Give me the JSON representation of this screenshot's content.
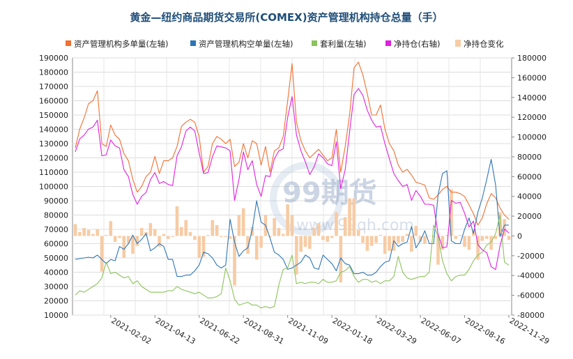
{
  "chart_data": {
    "type": "line+bar",
    "title": "黄金—纽约商品期货交易所(COMEX)资产管理机构持仓总量（手）",
    "watermark": {
      "main": "99期货",
      "sub": "www.99qh.com"
    },
    "x_tick_labels": [
      "2021-02-02",
      "2021-04-13",
      "2021-06-22",
      "2021-08-31",
      "2021-11-09",
      "2022-01-18",
      "2022-03-29",
      "2022-06-07",
      "2022-08-16",
      "2022-11-29"
    ],
    "x_tick_positions": [
      8,
      18,
      28,
      38,
      48,
      58,
      68,
      78,
      88,
      98
    ],
    "n_points": 99,
    "left_axis": {
      "min": 10000,
      "max": 190000,
      "step": 10000,
      "ticks": [
        "10000",
        "20000",
        "30000",
        "40000",
        "50000",
        "60000",
        "70000",
        "80000",
        "90000",
        "100000",
        "110000",
        "120000",
        "130000",
        "140000",
        "150000",
        "160000",
        "170000",
        "180000",
        "190000"
      ]
    },
    "right_axis": {
      "min": -80000,
      "max": 180000,
      "step": 20000,
      "ticks": [
        "-80000",
        "-60000",
        "-40000",
        "-20000",
        "0",
        "20000",
        "40000",
        "60000",
        "80000",
        "100000",
        "120000",
        "140000",
        "160000",
        "180000"
      ]
    },
    "grid": true,
    "legend_position": "top",
    "series": [
      {
        "name": "资产管理机构多单量(左轴)",
        "axis": "left",
        "kind": "line",
        "color": "#f07030",
        "values": [
          127000,
          140000,
          148000,
          158000,
          160000,
          167000,
          130000,
          128000,
          143000,
          136000,
          133000,
          123000,
          118000,
          105000,
          96000,
          100000,
          107000,
          110000,
          121000,
          109000,
          118000,
          118000,
          120000,
          128000,
          142000,
          145000,
          147000,
          145000,
          135000,
          110000,
          114000,
          130000,
          135000,
          133000,
          130000,
          133000,
          114000,
          117000,
          130000,
          120000,
          132000,
          130000,
          115000,
          128000,
          110000,
          125000,
          127000,
          135000,
          160000,
          186000,
          145000,
          132000,
          125000,
          120000,
          123000,
          126000,
          122000,
          118000,
          120000,
          140000,
          110000,
          128000,
          150000,
          183000,
          187000,
          178000,
          165000,
          150000,
          150000,
          157000,
          140000,
          130000,
          125000,
          115000,
          110000,
          112000,
          108000,
          103000,
          102000,
          101000,
          92000,
          91000,
          94000,
          98000,
          100000,
          96000,
          96000,
          95000,
          93000,
          87000,
          81000,
          73000,
          78000,
          88000,
          95000,
          92000,
          85000,
          80000,
          77000
        ]
      },
      {
        "name": "资产管理机构空单量(左轴)",
        "axis": "left",
        "kind": "line",
        "color": "#2e75b6",
        "values": [
          49000,
          49500,
          50000,
          50500,
          50000,
          52000,
          49000,
          46000,
          49000,
          48000,
          58000,
          56000,
          60000,
          66000,
          60000,
          63000,
          67000,
          55000,
          57000,
          60000,
          58000,
          49000,
          49000,
          37000,
          37000,
          38000,
          38000,
          41000,
          45000,
          54000,
          53000,
          50000,
          45000,
          43000,
          45000,
          77000,
          61000,
          51000,
          55000,
          57000,
          70000,
          90000,
          75000,
          73000,
          64000,
          54000,
          52000,
          49000,
          42000,
          43000,
          45000,
          47000,
          52000,
          50000,
          43000,
          42000,
          52000,
          49000,
          46000,
          41000,
          50000,
          46000,
          45000,
          39000,
          39000,
          40000,
          38000,
          38000,
          40000,
          44000,
          47000,
          48000,
          62000,
          58000,
          60000,
          61000,
          72000,
          57000,
          62000,
          69000,
          60000,
          60000,
          94000,
          109000,
          111000,
          62000,
          60000,
          60000,
          70000,
          78000,
          67000,
          82000,
          92000,
          105000,
          119000,
          101000,
          65000,
          73000,
          73000
        ]
      },
      {
        "name": "套利量(左轴)",
        "axis": "left",
        "kind": "line",
        "color": "#8cc35a",
        "values": [
          24000,
          27000,
          26000,
          28000,
          30000,
          32000,
          36000,
          47000,
          39000,
          40000,
          38000,
          36000,
          37000,
          32000,
          34000,
          30000,
          28000,
          26000,
          26000,
          26000,
          26000,
          27000,
          27000,
          30000,
          28000,
          27000,
          26000,
          25000,
          26000,
          24000,
          22000,
          22000,
          23000,
          25000,
          43000,
          34000,
          21000,
          17000,
          18000,
          19000,
          17000,
          17000,
          15000,
          16000,
          15000,
          16000,
          31000,
          42000,
          43000,
          52000,
          32000,
          33000,
          32000,
          33000,
          33000,
          32000,
          35000,
          33000,
          33000,
          34000,
          40000,
          41000,
          44000,
          37000,
          33000,
          35000,
          35000,
          33000,
          34000,
          32000,
          34000,
          34000,
          37000,
          51000,
          40000,
          36000,
          35000,
          36000,
          37000,
          37000,
          40000,
          73000,
          65000,
          48000,
          39000,
          34000,
          37000,
          38000,
          38000,
          42000,
          48000,
          52000,
          54000,
          59000,
          61000,
          67000,
          80000,
          47000,
          45000
        ]
      },
      {
        "name": "净持仓(右轴)",
        "axis": "right",
        "kind": "line",
        "color": "#e020e0",
        "values": [
          85000,
          98000,
          102000,
          108000,
          110000,
          117000,
          81000,
          82000,
          97000,
          91000,
          89000,
          67000,
          60000,
          42000,
          32000,
          40000,
          44000,
          57000,
          64000,
          53000,
          55000,
          52000,
          51000,
          81000,
          90000,
          106000,
          110000,
          106000,
          84000,
          63000,
          64000,
          80000,
          91000,
          90000,
          89000,
          86000,
          36000,
          57000,
          85000,
          67000,
          76000,
          52000,
          40000,
          61000,
          60000,
          78000,
          86000,
          88000,
          120000,
          141000,
          102000,
          86000,
          75000,
          62000,
          70000,
          83000,
          79000,
          73000,
          71000,
          95000,
          48000,
          67000,
          105000,
          143000,
          149000,
          142000,
          127000,
          117000,
          110000,
          111000,
          93000,
          78000,
          63000,
          56000,
          50000,
          52000,
          36000,
          46000,
          40000,
          32000,
          32000,
          31000,
          2000,
          -12000,
          -11000,
          36000,
          33000,
          34000,
          23000,
          9000,
          15000,
          -9000,
          -14000,
          -17000,
          -31000,
          -34000,
          -10000,
          7000,
          3000
        ]
      },
      {
        "name": "净持仓变化",
        "axis": "right",
        "kind": "bar",
        "color": "#f7cba4",
        "values": [
          12000,
          4000,
          8000,
          6000,
          2000,
          7000,
          -36000,
          1000,
          15000,
          -6000,
          -2000,
          -22000,
          -7000,
          -18000,
          -10000,
          8000,
          4000,
          13000,
          7000,
          -11000,
          2000,
          -3000,
          -1000,
          30000,
          9000,
          16000,
          4000,
          -4000,
          -22000,
          -21000,
          1000,
          16000,
          11000,
          -1000,
          -1000,
          -3000,
          -50000,
          21000,
          28000,
          -18000,
          9000,
          -24000,
          -12000,
          21000,
          -1000,
          18000,
          8000,
          2000,
          32000,
          21000,
          -39000,
          -16000,
          -11000,
          -13000,
          8000,
          13000,
          -4000,
          -6000,
          -2000,
          24000,
          -47000,
          19000,
          38000,
          38000,
          6000,
          -7000,
          -15000,
          -10000,
          -7000,
          1000,
          -18000,
          -15000,
          -15000,
          -7000,
          -6000,
          2000,
          -16000,
          10000,
          -6000,
          -8000,
          0,
          -1000,
          -29000,
          -14000,
          1000,
          47000,
          -3000,
          1000,
          -11000,
          -14000,
          6000,
          -24000,
          -5000,
          -3000,
          -14000,
          -3000,
          24000,
          17000,
          -4000
        ]
      }
    ]
  }
}
